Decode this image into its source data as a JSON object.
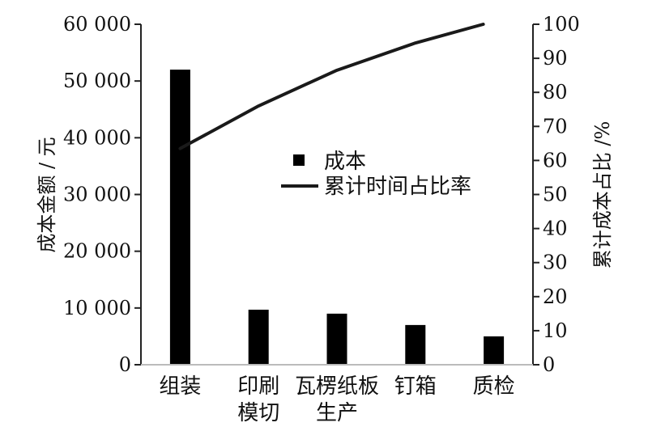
{
  "chart_data": {
    "type": "bar",
    "title": "",
    "categories": [
      [
        "组装"
      ],
      [
        "印刷",
        "模切"
      ],
      [
        "瓦楞纸板",
        "生产"
      ],
      [
        "钉箱"
      ],
      [
        "质检"
      ]
    ],
    "series": [
      {
        "name": "成本",
        "type": "bar",
        "axis": "left",
        "color": "#000000",
        "values": [
          52000,
          9700,
          9000,
          7000,
          5000
        ]
      },
      {
        "name": "累计时间占比率",
        "type": "line",
        "axis": "right",
        "color": "#1a1a1a",
        "values": [
          63.5,
          76,
          86.5,
          94.5,
          100
        ]
      }
    ],
    "left_axis": {
      "label": "成本金额 / 元",
      "ylim": [
        0,
        60000
      ],
      "ticks": [
        "0",
        "10 000",
        "20 000",
        "30 000",
        "40 000",
        "50 000",
        "60 000"
      ],
      "tick_values": [
        0,
        10000,
        20000,
        30000,
        40000,
        50000,
        60000
      ]
    },
    "right_axis": {
      "label": "累计成本占比 /%",
      "ylim": [
        0,
        100
      ],
      "ticks": [
        "0",
        "10",
        "20",
        "30",
        "40",
        "50",
        "60",
        "70",
        "80",
        "90",
        "100"
      ],
      "tick_values": [
        0,
        10,
        20,
        30,
        40,
        50,
        60,
        70,
        80,
        90,
        100
      ]
    },
    "grid": false,
    "legend": {
      "placement": "center",
      "entries": [
        "成本",
        "累计时间占比率"
      ]
    }
  }
}
